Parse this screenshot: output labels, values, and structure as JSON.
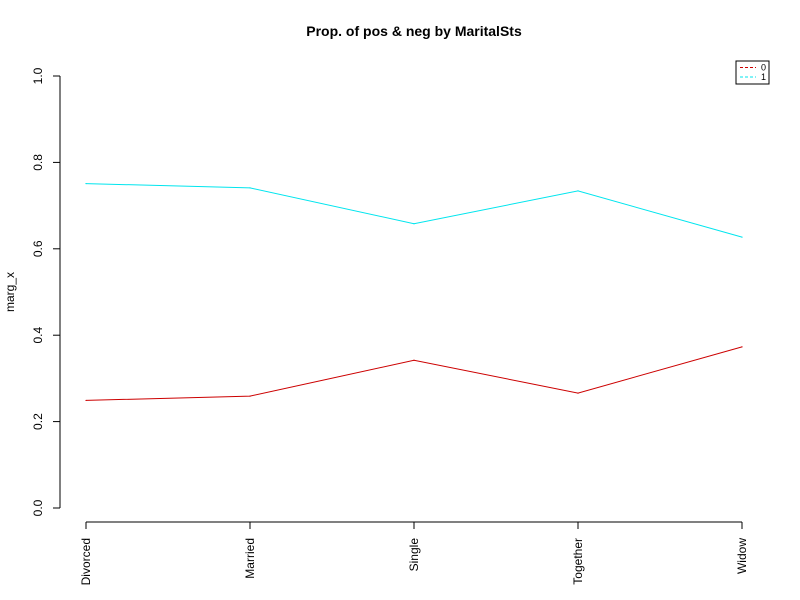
{
  "chart_data": {
    "type": "line",
    "title": "Prop. of pos & neg by MaritalSts",
    "xlabel": "",
    "ylabel": "marg_x",
    "categories": [
      "Divorced",
      "Married",
      "Single",
      "Together",
      "Widow"
    ],
    "ylim": [
      0,
      1
    ],
    "y_ticks": [
      "0.0",
      "0.2",
      "0.4",
      "0.6",
      "0.8",
      "1.0"
    ],
    "grid": false,
    "legend_position": "top-right",
    "series": [
      {
        "name": "0",
        "color": "#cc0000",
        "values": [
          0.249,
          0.259,
          0.342,
          0.266,
          0.373
        ]
      },
      {
        "name": "1",
        "color": "#00e5ee",
        "values": [
          0.751,
          0.741,
          0.658,
          0.734,
          0.627
        ]
      }
    ]
  }
}
